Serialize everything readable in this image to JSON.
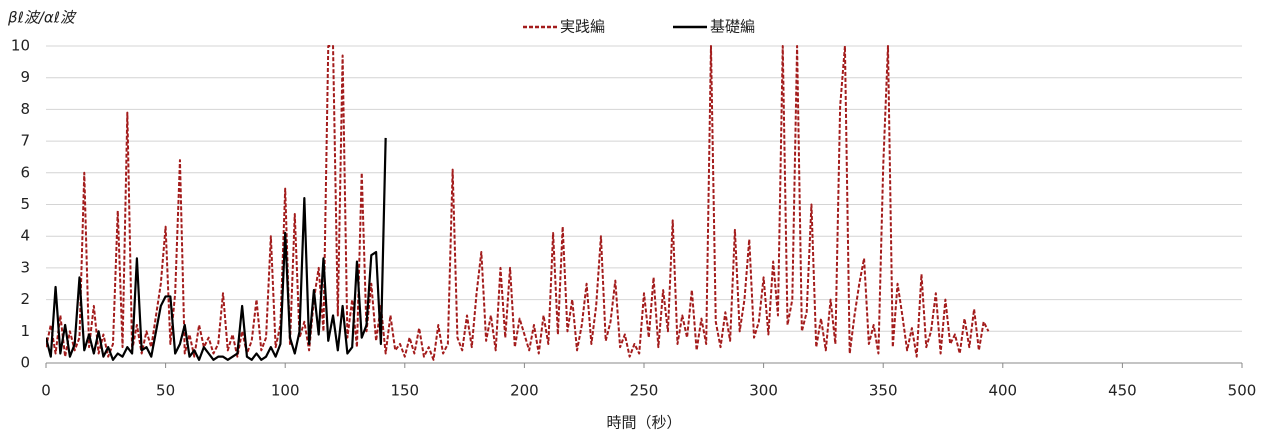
{
  "chart_data": {
    "type": "line",
    "y_label": "βℓ波/αℓ波",
    "x_label": "時間（秒）",
    "x": [
      0,
      2,
      4,
      6,
      8,
      10,
      12,
      14,
      16,
      18,
      20,
      22,
      24,
      26,
      28,
      30,
      32,
      34,
      36,
      38,
      40,
      42,
      44,
      46,
      48,
      50,
      52,
      54,
      56,
      58,
      60,
      62,
      64,
      66,
      68,
      70,
      72,
      74,
      76,
      78,
      80,
      82,
      84,
      86,
      88,
      90,
      92,
      94,
      96,
      98,
      100,
      102,
      104,
      106,
      108,
      110,
      112,
      114,
      116,
      118,
      120,
      122,
      124,
      126,
      128,
      130,
      132,
      134,
      136,
      138,
      140,
      142,
      144,
      146,
      148,
      150,
      152,
      154,
      156,
      158,
      160,
      162,
      164,
      166,
      168,
      170,
      172,
      174,
      176,
      178,
      180,
      182,
      184,
      186,
      188,
      190,
      192,
      194,
      196,
      198,
      200,
      202,
      204,
      206,
      208,
      210,
      212,
      214,
      216,
      218,
      220,
      222,
      224,
      226,
      228,
      230,
      232,
      234,
      236,
      238,
      240,
      242,
      244,
      246,
      248,
      250,
      252,
      254,
      256,
      258,
      260,
      262,
      264,
      266,
      268,
      270,
      272,
      274,
      276,
      278,
      280,
      282,
      284,
      286,
      288,
      290,
      292,
      294,
      296,
      298,
      300,
      302,
      304,
      306,
      308,
      310,
      312,
      314,
      316,
      318,
      320,
      322,
      324,
      326,
      328,
      330,
      332,
      334,
      336,
      338,
      340,
      342,
      344,
      346,
      348,
      350,
      352,
      354,
      356,
      358,
      360,
      362,
      364,
      366,
      368,
      370,
      372,
      374,
      376,
      378,
      380,
      382,
      384,
      386,
      388,
      390,
      392,
      394
    ],
    "series": [
      {
        "name": "実践編",
        "color": "#a31c1c",
        "dash": true,
        "values": [
          0.5,
          1.2,
          0.3,
          1.5,
          0.2,
          1.0,
          0.4,
          0.8,
          6.0,
          0.5,
          1.8,
          0.3,
          0.9,
          0.2,
          0.6,
          4.8,
          0.5,
          7.9,
          0.4,
          1.2,
          0.3,
          1.0,
          0.5,
          1.5,
          2.5,
          4.3,
          0.6,
          2.2,
          6.4,
          0.3,
          0.9,
          0.2,
          1.2,
          0.5,
          0.8,
          0.3,
          0.6,
          2.2,
          0.4,
          0.9,
          0.2,
          1.0,
          0.3,
          0.7,
          2.0,
          0.4,
          0.8,
          4.0,
          0.5,
          1.2,
          5.5,
          0.6,
          4.7,
          0.8,
          1.3,
          0.4,
          2.0,
          3.0,
          1.0,
          10,
          10,
          1.5,
          9.7,
          0.8,
          2.0,
          0.5,
          6.0,
          1.0,
          2.5,
          0.7,
          1.8,
          0.3,
          1.5,
          0.4,
          0.6,
          0.2,
          0.8,
          0.3,
          1.1,
          0.2,
          0.5,
          0.1,
          1.2,
          0.3,
          0.6,
          6.1,
          0.8,
          0.4,
          1.5,
          0.5,
          2.2,
          3.5,
          0.7,
          1.5,
          0.4,
          3.0,
          0.8,
          3.0,
          0.5,
          1.4,
          0.9,
          0.4,
          1.2,
          0.3,
          1.5,
          0.6,
          4.1,
          0.9,
          4.3,
          1.0,
          2.0,
          0.4,
          1.2,
          2.5,
          0.6,
          1.8,
          4.0,
          0.7,
          1.3,
          2.6,
          0.5,
          0.9,
          0.2,
          0.6,
          0.3,
          2.2,
          0.8,
          2.7,
          0.5,
          2.3,
          1.0,
          4.5,
          0.6,
          1.5,
          0.8,
          2.3,
          0.4,
          1.4,
          0.6,
          10,
          1.3,
          0.5,
          1.6,
          0.7,
          4.2,
          1.0,
          2.0,
          3.9,
          0.8,
          1.3,
          2.7,
          0.9,
          3.2,
          1.5,
          10,
          1.2,
          2.0,
          10,
          1.0,
          1.6,
          5.0,
          0.5,
          1.4,
          0.4,
          2.0,
          0.6,
          8.1,
          10,
          0.3,
          1.5,
          2.5,
          3.3,
          0.6,
          1.2,
          0.3,
          6.2,
          10,
          0.5,
          2.5,
          1.5,
          0.4,
          1.1,
          0.2,
          2.8,
          0.5,
          1.0,
          2.2,
          0.3,
          2.0,
          0.6,
          0.9,
          0.3,
          1.4,
          0.5,
          1.7,
          0.4,
          1.3,
          1.0
        ]
      },
      {
        "name": "基礎編",
        "color": "#000000",
        "dash": false,
        "values": [
          0.8,
          0.2,
          2.4,
          0.3,
          1.2,
          0.2,
          0.6,
          2.7,
          0.4,
          0.9,
          0.3,
          1.0,
          0.2,
          0.5,
          0.1,
          0.3,
          0.2,
          0.5,
          0.3,
          3.3,
          0.4,
          0.5,
          0.2,
          1.0,
          1.8,
          2.1,
          2.1,
          0.3,
          0.6,
          1.2,
          0.2,
          0.4,
          0.1,
          0.5,
          0.3,
          0.1,
          0.2,
          0.2,
          0.1,
          0.2,
          0.3,
          1.8,
          0.2,
          0.1,
          0.3,
          0.1,
          0.2,
          0.5,
          0.2,
          0.6,
          4.1,
          0.8,
          0.3,
          1.0,
          5.2,
          0.6,
          2.3,
          0.9,
          3.3,
          0.7,
          1.5,
          0.4,
          1.8,
          0.3,
          0.5,
          3.2,
          0.8,
          1.2,
          3.4,
          3.5,
          0.6,
          7.1,
          null,
          null,
          null,
          null,
          null,
          null,
          null,
          null,
          null,
          null,
          null,
          null,
          null,
          null,
          null,
          null,
          null,
          null,
          null,
          null,
          null,
          null,
          null,
          null,
          null,
          null,
          null,
          null,
          null,
          null,
          null,
          null,
          null,
          null,
          null,
          null,
          null,
          null,
          null,
          null,
          null,
          null,
          null,
          null,
          null,
          null,
          null,
          null,
          null,
          null,
          null,
          null,
          null,
          null,
          null,
          null,
          null,
          null,
          null,
          null,
          null,
          null,
          null,
          null,
          null,
          null,
          null,
          null,
          null,
          null,
          null,
          null,
          null,
          null,
          null,
          null,
          null,
          null,
          null,
          null,
          null,
          null,
          null,
          null,
          null,
          null,
          null,
          null,
          null,
          null,
          null,
          null,
          null,
          null,
          null,
          null,
          null,
          null,
          null,
          null,
          null,
          null,
          null,
          null,
          null,
          null,
          null,
          null,
          null,
          null,
          null,
          null,
          null,
          null,
          null,
          null,
          null,
          null,
          null,
          null,
          null,
          null,
          null,
          null,
          null,
          null
        ]
      }
    ],
    "xlim": [
      0,
      500
    ],
    "xticks": [
      0,
      50,
      100,
      150,
      200,
      250,
      300,
      350,
      400,
      450,
      500
    ],
    "ylim": [
      0,
      10
    ],
    "yticks": [
      0,
      1,
      2,
      3,
      4,
      5,
      6,
      7,
      8,
      9,
      10
    ],
    "grid": true,
    "legend": "top"
  }
}
